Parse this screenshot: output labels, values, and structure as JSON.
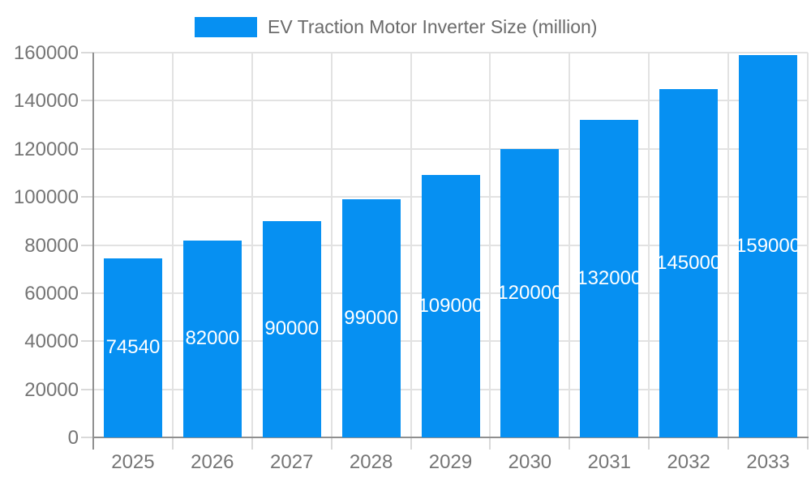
{
  "chart_data": {
    "type": "bar",
    "title": "EV Traction Motor Inverter Size (million)",
    "categories": [
      "2025",
      "2026",
      "2027",
      "2028",
      "2029",
      "2030",
      "2031",
      "2032",
      "2033"
    ],
    "values": [
      74540,
      82000,
      90000,
      99000,
      109000,
      120000,
      132000,
      145000,
      159000
    ],
    "data_labels": [
      "74540",
      "82000",
      "90000",
      "99000",
      "109000",
      "120000",
      "132000",
      "145000",
      "159000"
    ],
    "yticks": [
      0,
      20000,
      40000,
      60000,
      80000,
      100000,
      120000,
      140000,
      160000
    ],
    "ylim": [
      0,
      160000
    ],
    "xlabel": "",
    "ylabel": "",
    "grid": true,
    "legend_position": "top",
    "colors": {
      "bar": "#0690F2",
      "bar_label_text": "#FFFFFF",
      "axis_text": "#757575",
      "legend_text": "#6B6B6B",
      "axis_line": "#8F8F8F",
      "gridline": "#E2E2E2",
      "tickmark": "#D9D9D9"
    }
  }
}
